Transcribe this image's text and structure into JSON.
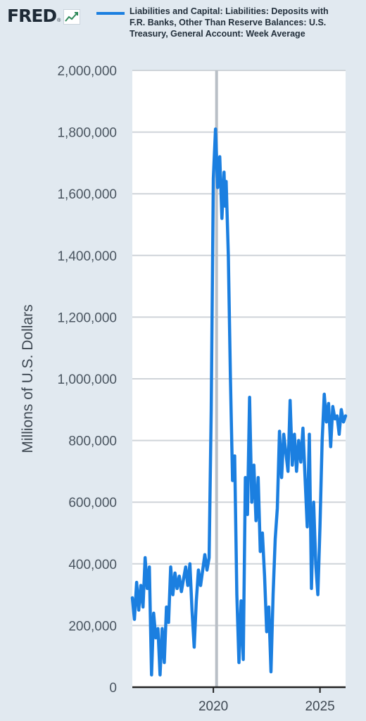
{
  "header": {
    "logo_text": "FRED",
    "logo_mark": "®",
    "logo_icon": "trend-chart-icon"
  },
  "colors": {
    "background": "#e1e9f0",
    "plot_area": "#ffffff",
    "series_line": "#1b7fe0",
    "gridline": "#cfd4d9",
    "recession_line": "#b9bfc6"
  },
  "chart_data": {
    "type": "line",
    "title": "",
    "legend_position": "top",
    "ylabel": "Millions of U.S. Dollars",
    "xlabel": "",
    "ylim": [
      0,
      2000000
    ],
    "xlim": [
      2016.2,
      2026.2
    ],
    "grid": true,
    "y_ticks": [
      0,
      200000,
      400000,
      600000,
      800000,
      1000000,
      1200000,
      1400000,
      1600000,
      1800000,
      2000000
    ],
    "y_tick_labels": [
      "0",
      "200,000",
      "400,000",
      "600,000",
      "800,000",
      "1,000,000",
      "1,200,000",
      "1,400,000",
      "1,600,000",
      "1,800,000",
      "2,000,000"
    ],
    "x_ticks": [
      2020,
      2025
    ],
    "x_tick_labels": [
      "2020",
      "2025"
    ],
    "recession_marker": 2020.15,
    "series": [
      {
        "name": "Liabilities and Capital: Liabilities: Deposits with F.R. Banks, Other Than Reserve Balances: U.S. Treasury, General Account: Week Average",
        "x": [
          2016.2,
          2016.3,
          2016.4,
          2016.5,
          2016.6,
          2016.7,
          2016.8,
          2016.9,
          2017.0,
          2017.1,
          2017.2,
          2017.3,
          2017.4,
          2017.5,
          2017.6,
          2017.7,
          2017.8,
          2017.9,
          2018.0,
          2018.1,
          2018.2,
          2018.3,
          2018.4,
          2018.5,
          2018.6,
          2018.7,
          2018.8,
          2018.9,
          2019.0,
          2019.1,
          2019.2,
          2019.3,
          2019.4,
          2019.5,
          2019.6,
          2019.7,
          2019.8,
          2019.9,
          2020.0,
          2020.1,
          2020.2,
          2020.3,
          2020.4,
          2020.5,
          2020.55,
          2020.6,
          2020.7,
          2020.8,
          2020.9,
          2021.0,
          2021.1,
          2021.2,
          2021.3,
          2021.4,
          2021.5,
          2021.6,
          2021.7,
          2021.8,
          2021.9,
          2022.0,
          2022.1,
          2022.2,
          2022.3,
          2022.4,
          2022.5,
          2022.6,
          2022.7,
          2022.8,
          2022.9,
          2023.0,
          2023.1,
          2023.2,
          2023.3,
          2023.4,
          2023.5,
          2023.6,
          2023.7,
          2023.8,
          2023.9,
          2024.0,
          2024.1,
          2024.2,
          2024.3,
          2024.4,
          2024.5,
          2024.6,
          2024.7,
          2024.8,
          2024.9,
          2025.0,
          2025.1,
          2025.2,
          2025.3,
          2025.4,
          2025.5,
          2025.6,
          2025.7,
          2025.8,
          2025.9,
          2026.0,
          2026.1,
          2026.2
        ],
        "y": [
          290000,
          220000,
          340000,
          250000,
          330000,
          260000,
          420000,
          320000,
          390000,
          40000,
          240000,
          160000,
          190000,
          40000,
          190000,
          80000,
          260000,
          210000,
          390000,
          300000,
          370000,
          320000,
          360000,
          310000,
          350000,
          390000,
          330000,
          400000,
          250000,
          130000,
          280000,
          380000,
          330000,
          380000,
          430000,
          380000,
          420000,
          900000,
          1650000,
          1810000,
          1620000,
          1720000,
          1520000,
          1670000,
          1560000,
          1640000,
          1400000,
          1000000,
          670000,
          750000,
          300000,
          80000,
          280000,
          90000,
          680000,
          560000,
          940000,
          600000,
          720000,
          540000,
          680000,
          440000,
          500000,
          360000,
          180000,
          260000,
          50000,
          300000,
          480000,
          580000,
          830000,
          680000,
          820000,
          760000,
          700000,
          930000,
          720000,
          820000,
          700000,
          800000,
          730000,
          840000,
          680000,
          520000,
          820000,
          320000,
          600000,
          400000,
          300000,
          520000,
          800000,
          950000,
          860000,
          920000,
          780000,
          910000,
          870000,
          880000,
          820000,
          900000,
          860000,
          880000
        ]
      }
    ]
  }
}
